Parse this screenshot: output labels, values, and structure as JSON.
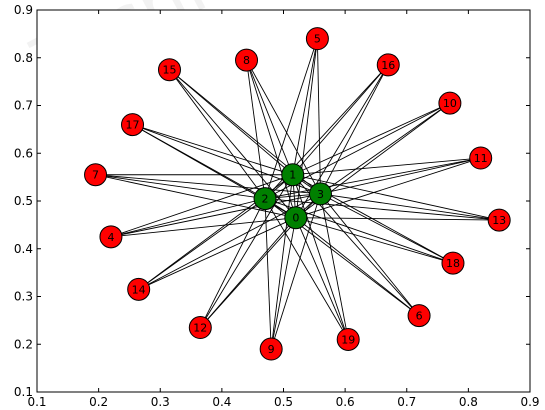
{
  "colors": {
    "hub_fill": "#008000",
    "leaf_fill": "#ff0000",
    "edge": "#000000",
    "axis": "#000000",
    "background": "#ffffff"
  },
  "watermark_text": "Techno",
  "chart_data": {
    "type": "scatter",
    "title": "",
    "xlabel": "",
    "ylabel": "",
    "xlim": [
      0.1,
      0.9
    ],
    "ylim": [
      0.1,
      0.9
    ],
    "x_ticks": [
      "0.1",
      "0.2",
      "0.3",
      "0.4",
      "0.5",
      "0.6",
      "0.7",
      "0.8",
      "0.9"
    ],
    "y_ticks": [
      "0.1",
      "0.2",
      "0.3",
      "0.4",
      "0.5",
      "0.6",
      "0.7",
      "0.8",
      "0.9"
    ],
    "grid": false,
    "nodes": [
      {
        "id": "0",
        "x": 0.52,
        "y": 0.465,
        "group": "hub"
      },
      {
        "id": "1",
        "x": 0.515,
        "y": 0.555,
        "group": "hub"
      },
      {
        "id": "2",
        "x": 0.47,
        "y": 0.505,
        "group": "hub"
      },
      {
        "id": "3",
        "x": 0.56,
        "y": 0.515,
        "group": "hub"
      },
      {
        "id": "4",
        "x": 0.22,
        "y": 0.425,
        "group": "leaf"
      },
      {
        "id": "5",
        "x": 0.555,
        "y": 0.84,
        "group": "leaf"
      },
      {
        "id": "6",
        "x": 0.72,
        "y": 0.26,
        "group": "leaf"
      },
      {
        "id": "7",
        "x": 0.195,
        "y": 0.555,
        "group": "leaf"
      },
      {
        "id": "8",
        "x": 0.44,
        "y": 0.795,
        "group": "leaf"
      },
      {
        "id": "9",
        "x": 0.48,
        "y": 0.19,
        "group": "leaf"
      },
      {
        "id": "10",
        "x": 0.77,
        "y": 0.705,
        "group": "leaf"
      },
      {
        "id": "11",
        "x": 0.82,
        "y": 0.59,
        "group": "leaf"
      },
      {
        "id": "12",
        "x": 0.365,
        "y": 0.235,
        "group": "leaf"
      },
      {
        "id": "13",
        "x": 0.85,
        "y": 0.46,
        "group": "leaf"
      },
      {
        "id": "14",
        "x": 0.265,
        "y": 0.315,
        "group": "leaf"
      },
      {
        "id": "15",
        "x": 0.315,
        "y": 0.775,
        "group": "leaf"
      },
      {
        "id": "16",
        "x": 0.67,
        "y": 0.785,
        "group": "leaf"
      },
      {
        "id": "17",
        "x": 0.255,
        "y": 0.66,
        "group": "leaf"
      },
      {
        "id": "18",
        "x": 0.775,
        "y": 0.37,
        "group": "leaf"
      },
      {
        "id": "19",
        "x": 0.605,
        "y": 0.21,
        "group": "leaf"
      }
    ],
    "edges": "every hub node (0, 1, 2, 3) is connected to every leaf node (4-19) and to each other hub"
  }
}
